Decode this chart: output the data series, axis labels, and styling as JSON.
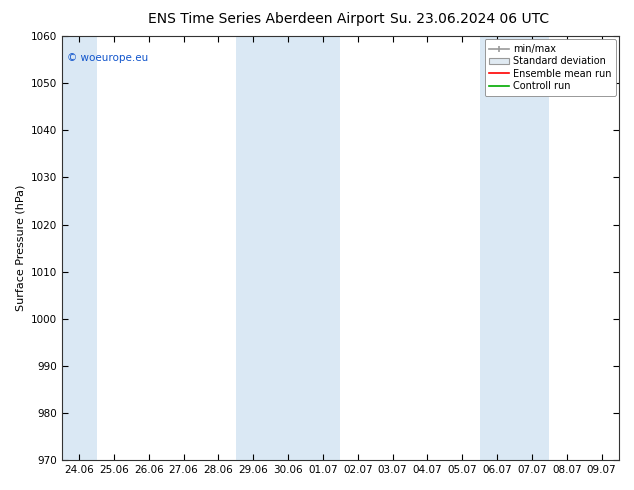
{
  "title": "ENS Time Series Aberdeen Airport",
  "title2": "Su. 23.06.2024 06 UTC",
  "ylabel": "Surface Pressure (hPa)",
  "ylim": [
    970,
    1060
  ],
  "yticks": [
    970,
    980,
    990,
    1000,
    1010,
    1020,
    1030,
    1040,
    1050,
    1060
  ],
  "x_labels": [
    "24.06",
    "25.06",
    "26.06",
    "27.06",
    "28.06",
    "29.06",
    "30.06",
    "01.07",
    "02.07",
    "03.07",
    "04.07",
    "05.07",
    "06.07",
    "07.07",
    "08.07",
    "09.07"
  ],
  "shaded_band_ranges": [
    [
      0,
      0
    ],
    [
      5,
      7
    ],
    [
      12,
      13
    ]
  ],
  "band_color": "#dae8f4",
  "background_color": "#ffffff",
  "watermark": "© woeurope.eu",
  "legend_items": [
    "min/max",
    "Standard deviation",
    "Ensemble mean run",
    "Controll run"
  ],
  "legend_colors_line": [
    "#999999",
    "#cccccc",
    "#ff0000",
    "#00aa00"
  ],
  "title_fontsize": 10,
  "axis_fontsize": 8,
  "tick_fontsize": 7.5
}
